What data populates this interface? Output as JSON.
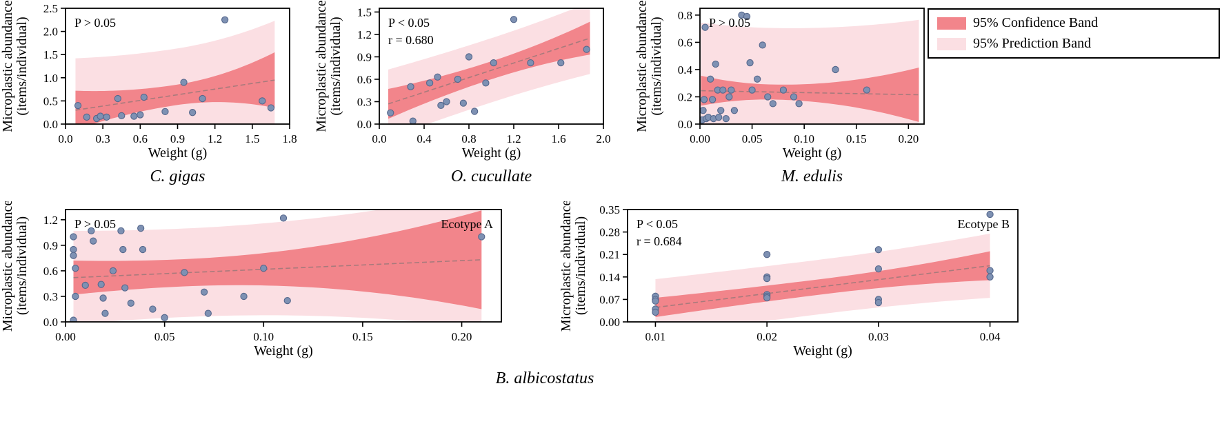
{
  "colors": {
    "confidence_band": "#f2858b",
    "prediction_band": "#fbdfe3",
    "point_fill": "#7e91b3",
    "point_edge": "#55678c",
    "regression_line": "#a87a7c",
    "frame": "#000000"
  },
  "legend": {
    "items": [
      {
        "label": "95% Confidence Band",
        "color_key": "confidence_band"
      },
      {
        "label": "95% Prediction Band",
        "color_key": "prediction_band"
      }
    ]
  },
  "captions": {
    "bottom": "B. albicostatus"
  },
  "chart_data": [
    {
      "type": "scatter",
      "title": "C. gigas",
      "xlabel": "Weight (g)",
      "ylabel_lines": [
        "Microplastic abundance",
        "(items/individual)"
      ],
      "xlim": [
        0,
        1.8
      ],
      "ylim": [
        0,
        2.5
      ],
      "xticks": [
        0,
        0.3,
        0.6,
        0.9,
        1.2,
        1.5,
        1.8
      ],
      "xtick_labels": [
        "0.0",
        "0.3",
        "0.6",
        "0.9",
        "1.2",
        "1.5",
        "1.8"
      ],
      "yticks": [
        0,
        0.5,
        1.0,
        1.5,
        2.0,
        2.5
      ],
      "ytick_labels": [
        "0.0",
        "0.5",
        "1.0",
        "1.5",
        "2.0",
        "2.5"
      ],
      "annotations": [
        "P > 0.05"
      ],
      "corner_label": "",
      "points": [
        [
          0.1,
          0.4
        ],
        [
          0.17,
          0.15
        ],
        [
          0.25,
          0.12
        ],
        [
          0.28,
          0.17
        ],
        [
          0.33,
          0.15
        ],
        [
          0.42,
          0.55
        ],
        [
          0.45,
          0.18
        ],
        [
          0.55,
          0.17
        ],
        [
          0.6,
          0.2
        ],
        [
          0.63,
          0.58
        ],
        [
          0.8,
          0.27
        ],
        [
          0.95,
          0.9
        ],
        [
          1.02,
          0.25
        ],
        [
          1.1,
          0.55
        ],
        [
          1.28,
          2.25
        ],
        [
          1.58,
          0.5
        ],
        [
          1.65,
          0.35
        ]
      ],
      "regression": {
        "x0": 0.08,
        "y0": 0.3,
        "x1": 1.68,
        "y1": 0.95
      },
      "band_x": [
        0.08,
        1.68
      ],
      "band_center": 0.88,
      "conf_hw": [
        0.42,
        0.22,
        0.6
      ],
      "pred_hw": [
        1.12,
        1.0,
        1.28
      ]
    },
    {
      "type": "scatter",
      "title": "O. cucullate",
      "xlabel": "Weight (g)",
      "ylabel_lines": [
        "Microplastic abundance",
        "(items/individual)"
      ],
      "xlim": [
        0,
        2.0
      ],
      "ylim": [
        0,
        1.55
      ],
      "xticks": [
        0,
        0.4,
        0.8,
        1.2,
        1.6,
        2.0
      ],
      "xtick_labels": [
        "0.0",
        "0.4",
        "0.8",
        "1.2",
        "1.6",
        "2.0"
      ],
      "yticks": [
        0,
        0.3,
        0.6,
        0.9,
        1.2,
        1.5
      ],
      "ytick_labels": [
        "0.0",
        "0.3",
        "0.6",
        "0.9",
        "1.2",
        "1.5"
      ],
      "annotations": [
        "P < 0.05",
        "r = 0.680"
      ],
      "corner_label": "",
      "points": [
        [
          0.1,
          0.15
        ],
        [
          0.28,
          0.5
        ],
        [
          0.3,
          0.04
        ],
        [
          0.45,
          0.55
        ],
        [
          0.52,
          0.63
        ],
        [
          0.55,
          0.25
        ],
        [
          0.6,
          0.3
        ],
        [
          0.7,
          0.6
        ],
        [
          0.75,
          0.28
        ],
        [
          0.8,
          0.9
        ],
        [
          0.85,
          0.17
        ],
        [
          0.95,
          0.55
        ],
        [
          1.02,
          0.82
        ],
        [
          1.2,
          1.4
        ],
        [
          1.35,
          0.82
        ],
        [
          1.62,
          0.82
        ],
        [
          1.85,
          1.0
        ]
      ],
      "regression": {
        "x0": 0.08,
        "y0": 0.27,
        "x1": 1.88,
        "y1": 1.15
      },
      "band_x": [
        0.08,
        1.88
      ],
      "band_center": 1.0,
      "conf_hw": [
        0.2,
        0.12,
        0.22
      ],
      "pred_hw": [
        0.46,
        0.43,
        0.48
      ]
    },
    {
      "type": "scatter",
      "title": "M. edulis",
      "xlabel": "Weight (g)",
      "ylabel_lines": [
        "Microplastic abundance",
        "(items/individual)"
      ],
      "xlim": [
        0,
        0.215
      ],
      "ylim": [
        0,
        0.85
      ],
      "xticks": [
        0,
        0.05,
        0.1,
        0.15,
        0.2
      ],
      "xtick_labels": [
        "0.00",
        "0.05",
        "0.10",
        "0.15",
        "0.20"
      ],
      "yticks": [
        0,
        0.2,
        0.4,
        0.6,
        0.8
      ],
      "ytick_labels": [
        "0.0",
        "0.2",
        "0.4",
        "0.6",
        "0.8"
      ],
      "annotations": [
        "P > 0.05"
      ],
      "corner_label": "",
      "points": [
        [
          0.002,
          0.03
        ],
        [
          0.003,
          0.1
        ],
        [
          0.004,
          0.18
        ],
        [
          0.005,
          0.71
        ],
        [
          0.006,
          0.04
        ],
        [
          0.008,
          0.05
        ],
        [
          0.01,
          0.33
        ],
        [
          0.012,
          0.18
        ],
        [
          0.013,
          0.04
        ],
        [
          0.015,
          0.44
        ],
        [
          0.017,
          0.25
        ],
        [
          0.018,
          0.05
        ],
        [
          0.02,
          0.1
        ],
        [
          0.022,
          0.25
        ],
        [
          0.025,
          0.04
        ],
        [
          0.028,
          0.2
        ],
        [
          0.03,
          0.25
        ],
        [
          0.033,
          0.1
        ],
        [
          0.04,
          0.8
        ],
        [
          0.045,
          0.79
        ],
        [
          0.048,
          0.45
        ],
        [
          0.05,
          0.25
        ],
        [
          0.055,
          0.33
        ],
        [
          0.06,
          0.58
        ],
        [
          0.065,
          0.2
        ],
        [
          0.07,
          0.15
        ],
        [
          0.08,
          0.25
        ],
        [
          0.09,
          0.2
        ],
        [
          0.095,
          0.15
        ],
        [
          0.13,
          0.4
        ],
        [
          0.16,
          0.25
        ]
      ],
      "regression": {
        "x0": 0.001,
        "y0": 0.245,
        "x1": 0.21,
        "y1": 0.215
      },
      "band_x": [
        0.001,
        0.21
      ],
      "band_center": 0.07,
      "conf_hw": [
        0.11,
        0.055,
        0.2
      ],
      "pred_hw": [
        0.5,
        0.47,
        0.55
      ]
    },
    {
      "type": "scatter",
      "title": "",
      "xlabel": "Weight (g)",
      "ylabel_lines": [
        "Microplastic abundance",
        "(items/individual)"
      ],
      "xlim": [
        0,
        0.22
      ],
      "ylim": [
        0,
        1.32
      ],
      "xticks": [
        0,
        0.05,
        0.1,
        0.15,
        0.2
      ],
      "xtick_labels": [
        "0.00",
        "0.05",
        "0.10",
        "0.15",
        "0.20"
      ],
      "yticks": [
        0,
        0.3,
        0.6,
        0.9,
        1.2
      ],
      "ytick_labels": [
        "0.0",
        "0.3",
        "0.6",
        "0.9",
        "1.2"
      ],
      "annotations": [
        "P > 0.05"
      ],
      "corner_label": "Ecotype A",
      "points": [
        [
          0.004,
          1.0
        ],
        [
          0.004,
          0.85
        ],
        [
          0.004,
          0.78
        ],
        [
          0.005,
          0.63
        ],
        [
          0.005,
          0.3
        ],
        [
          0.004,
          0.02
        ],
        [
          0.01,
          0.43
        ],
        [
          0.013,
          1.07
        ],
        [
          0.014,
          0.95
        ],
        [
          0.018,
          0.44
        ],
        [
          0.019,
          0.28
        ],
        [
          0.02,
          0.1
        ],
        [
          0.024,
          0.6
        ],
        [
          0.028,
          1.07
        ],
        [
          0.029,
          0.85
        ],
        [
          0.03,
          0.4
        ],
        [
          0.033,
          0.22
        ],
        [
          0.038,
          1.1
        ],
        [
          0.039,
          0.85
        ],
        [
          0.044,
          0.15
        ],
        [
          0.05,
          0.05
        ],
        [
          0.06,
          0.58
        ],
        [
          0.07,
          0.35
        ],
        [
          0.072,
          0.1
        ],
        [
          0.09,
          0.3
        ],
        [
          0.1,
          0.63
        ],
        [
          0.11,
          1.22
        ],
        [
          0.112,
          0.25
        ],
        [
          0.21,
          1.0
        ]
      ],
      "regression": {
        "x0": 0.004,
        "y0": 0.52,
        "x1": 0.21,
        "y1": 0.73
      },
      "band_x": [
        0.004,
        0.21
      ],
      "band_center": 0.06,
      "conf_hw": [
        0.2,
        0.16,
        0.58
      ],
      "pred_hw": [
        0.55,
        0.52,
        0.8
      ]
    },
    {
      "type": "scatter",
      "title": "",
      "xlabel": "Weight (g)",
      "ylabel_lines": [
        "Microplastic abundance",
        "(items/individual)"
      ],
      "xlim": [
        0.0075,
        0.0425
      ],
      "ylim": [
        0,
        0.35
      ],
      "xticks": [
        0.01,
        0.02,
        0.03,
        0.04
      ],
      "xtick_labels": [
        "0.01",
        "0.02",
        "0.03",
        "0.04"
      ],
      "yticks": [
        0,
        0.07,
        0.14,
        0.21,
        0.28,
        0.35
      ],
      "ytick_labels": [
        "0.00",
        "0.07",
        "0.14",
        "0.21",
        "0.28",
        "0.35"
      ],
      "annotations": [
        "P < 0.05",
        "r = 0.684"
      ],
      "corner_label": "Ecotype B",
      "points": [
        [
          0.01,
          0.08
        ],
        [
          0.01,
          0.07
        ],
        [
          0.01,
          0.065
        ],
        [
          0.01,
          0.04
        ],
        [
          0.01,
          0.03
        ],
        [
          0.02,
          0.21
        ],
        [
          0.02,
          0.14
        ],
        [
          0.02,
          0.135
        ],
        [
          0.02,
          0.085
        ],
        [
          0.02,
          0.08
        ],
        [
          0.02,
          0.075
        ],
        [
          0.03,
          0.225
        ],
        [
          0.03,
          0.165
        ],
        [
          0.03,
          0.07
        ],
        [
          0.03,
          0.06
        ],
        [
          0.04,
          0.335
        ],
        [
          0.04,
          0.16
        ],
        [
          0.04,
          0.14
        ]
      ],
      "regression": {
        "x0": 0.01,
        "y0": 0.045,
        "x1": 0.04,
        "y1": 0.175
      },
      "band_x": [
        0.01,
        0.04
      ],
      "band_center": 0.025,
      "conf_hw": [
        0.03,
        0.024,
        0.045
      ],
      "pred_hw": [
        0.088,
        0.085,
        0.1
      ]
    }
  ]
}
